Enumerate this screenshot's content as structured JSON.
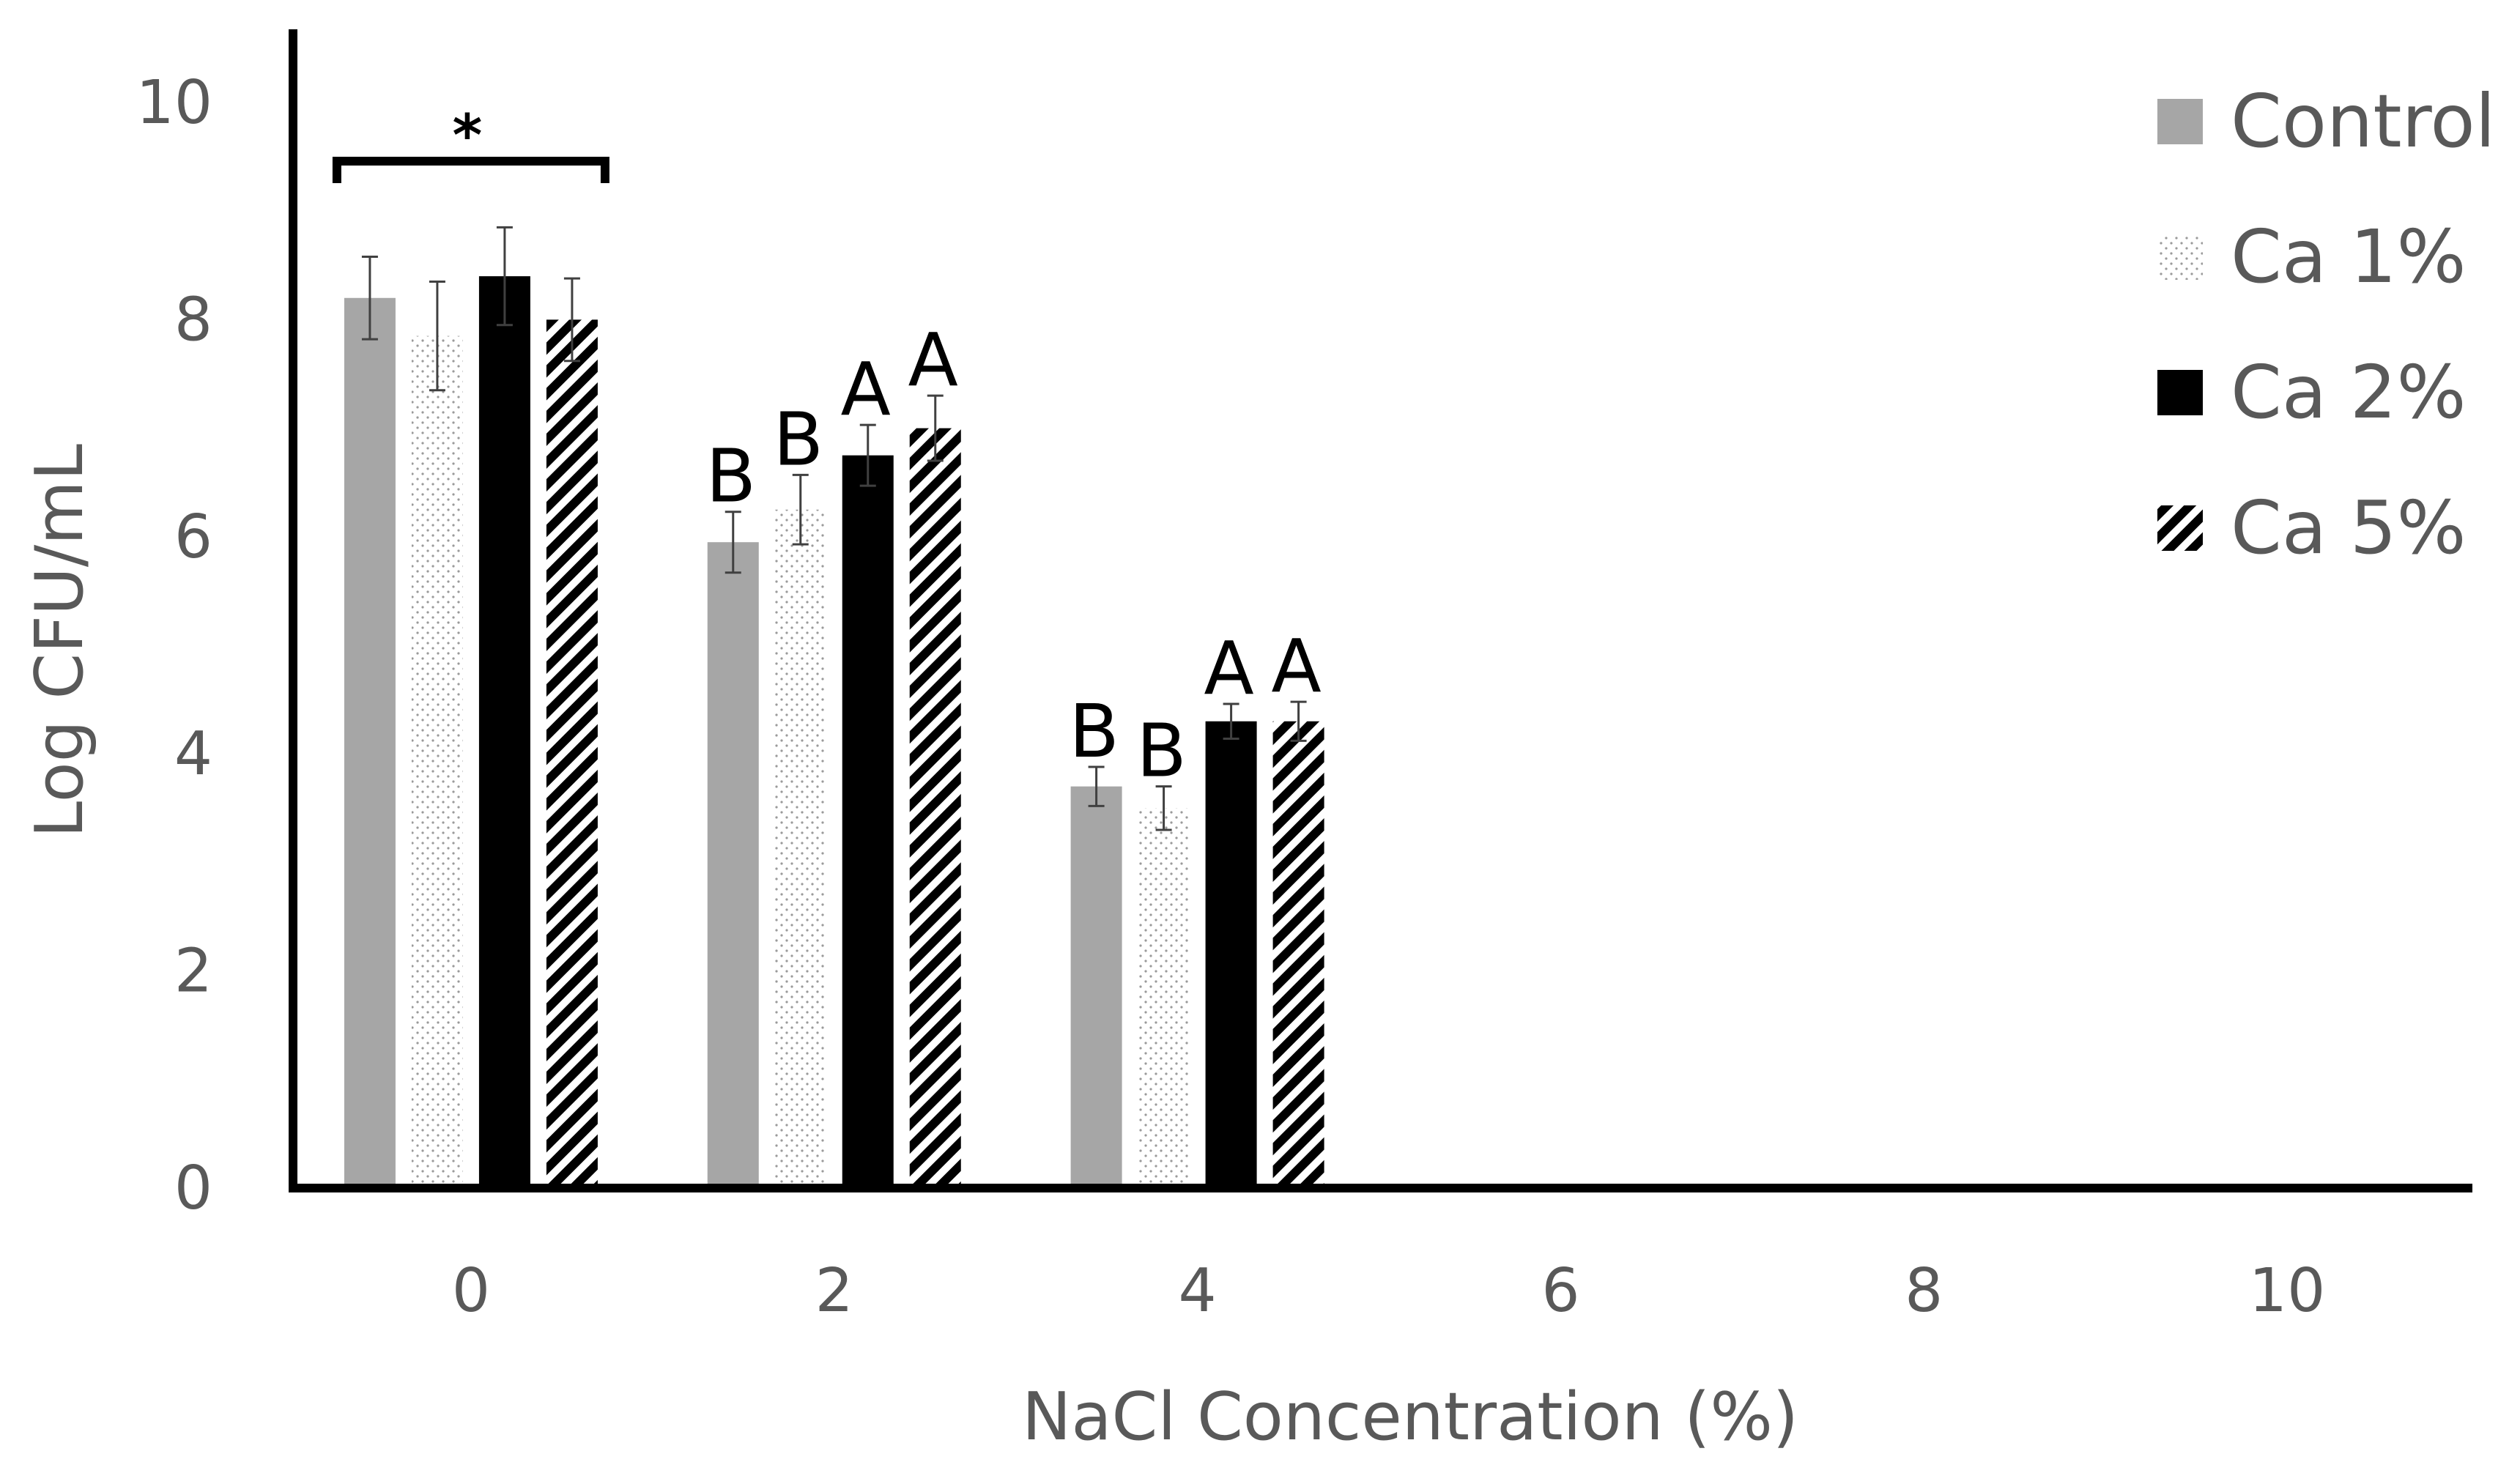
{
  "chart_data": {
    "type": "bar",
    "title": "",
    "xlabel": "NaCl Concentration (%)",
    "ylabel": "Log CFU/mL",
    "categories": [
      "0",
      "2",
      "4",
      "6",
      "8",
      "10"
    ],
    "ylim": [
      0,
      10
    ],
    "yticks": [
      "0",
      "2",
      "4",
      "6",
      "8",
      "10"
    ],
    "grid": false,
    "legend_position": "top-right",
    "series": [
      {
        "name": "Control",
        "pattern": "solid-gray",
        "color": "#a6a6a6",
        "values": [
          8.2,
          5.95,
          3.7,
          0,
          0,
          0
        ],
        "errors": [
          0.38,
          0.28,
          0.18,
          0,
          0,
          0
        ],
        "letters": [
          "",
          "B",
          "B",
          "",
          "",
          ""
        ]
      },
      {
        "name": "Ca 1%",
        "pattern": "dots",
        "color": "#bfbfbf",
        "values": [
          7.85,
          6.25,
          3.5,
          0,
          0,
          0
        ],
        "errors": [
          0.5,
          0.32,
          0.2,
          0,
          0,
          0
        ],
        "letters": [
          "",
          "B",
          "B",
          "",
          "",
          ""
        ]
      },
      {
        "name": "Ca 2%",
        "pattern": "solid-black",
        "color": "#000000",
        "values": [
          8.4,
          6.75,
          4.3,
          0,
          0,
          0
        ],
        "errors": [
          0.45,
          0.28,
          0.16,
          0,
          0,
          0
        ],
        "letters": [
          "",
          "A",
          "A",
          "",
          "",
          ""
        ]
      },
      {
        "name": "Ca 5%",
        "pattern": "stripes",
        "color": "#000000",
        "values": [
          8.0,
          7.0,
          4.3,
          0,
          0,
          0
        ],
        "errors": [
          0.38,
          0.3,
          0.18,
          0,
          0,
          0
        ],
        "letters": [
          "",
          "A",
          "A",
          "",
          "",
          ""
        ]
      }
    ],
    "annotations": [
      {
        "type": "significance-bracket",
        "text": "*",
        "category": "0"
      }
    ]
  }
}
